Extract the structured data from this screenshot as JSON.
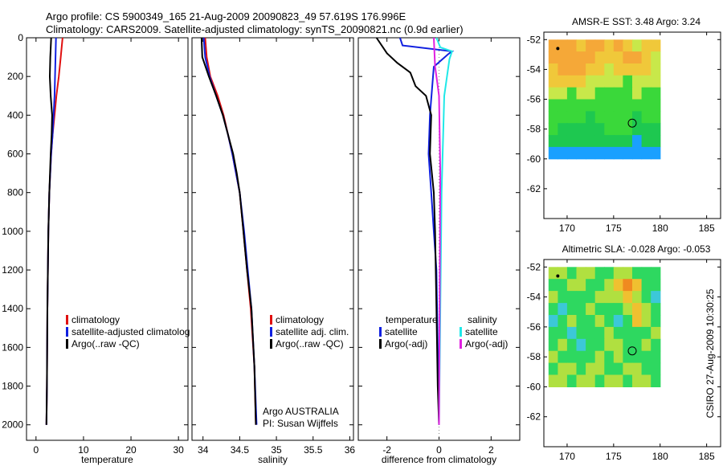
{
  "header": {
    "line1": "Argo profile: CS 5900349_165 21-Aug-2009 20090823_49 57.619S 176.996E",
    "line2": "Climatology: CARS2009. Satellite-adjusted climatology: synTS_20090821.nc (0.9d earlier)"
  },
  "credit": "CSIRO 27-Aug-2009 10:30:25",
  "colors": {
    "red": "#e01010",
    "blue": "#1020e0",
    "black": "#000000",
    "cyan": "#20e8e8",
    "magenta": "#e020e0"
  },
  "chart_data": [
    {
      "type": "line",
      "id": "temperature",
      "xlabel": "temperature",
      "ylabel": "",
      "xlim": [
        -2,
        32
      ],
      "ylim": [
        2080,
        0
      ],
      "y_reversed": true,
      "xticks": [
        0,
        10,
        20,
        30
      ],
      "xticklabels": [
        "0",
        "10",
        "20",
        "30"
      ],
      "yticks": [
        0,
        200,
        400,
        600,
        800,
        1000,
        1200,
        1400,
        1600,
        1800,
        2000
      ],
      "yticklabels": [
        "0",
        "200",
        "400",
        "600",
        "800",
        "1000",
        "1200",
        "1400",
        "1600",
        "1800",
        "2000"
      ],
      "legend": [
        "climatology",
        "satellite-adjusted climatolog",
        "Argo(..raw -QC)"
      ],
      "series": [
        {
          "name": "climatology",
          "color": "red",
          "x": [
            5.6,
            5.2,
            4.8,
            4.3,
            3.9,
            3.5,
            3.2,
            2.8,
            2.6,
            2.4,
            2.3,
            2.2
          ],
          "y": [
            0,
            100,
            200,
            300,
            400,
            500,
            600,
            800,
            1000,
            1400,
            1800,
            2000
          ]
        },
        {
          "name": "satellite-adjusted climatolog",
          "color": "blue",
          "x": [
            4.2,
            4.1,
            4.0,
            3.9,
            3.7,
            3.5,
            3.2,
            2.8,
            2.6,
            2.4,
            2.3,
            2.2
          ],
          "y": [
            0,
            100,
            200,
            300,
            400,
            500,
            600,
            800,
            1000,
            1400,
            1800,
            2000
          ]
        },
        {
          "name": "Argo(..raw -QC)",
          "color": "black",
          "x": [
            3.2,
            3.0,
            2.9,
            3.1,
            3.4,
            3.3,
            3.1,
            2.8,
            2.6,
            2.4,
            2.3,
            2.2
          ],
          "y": [
            0,
            100,
            200,
            300,
            400,
            500,
            600,
            800,
            1000,
            1400,
            1800,
            2000
          ]
        }
      ]
    },
    {
      "type": "line",
      "id": "salinity",
      "xlabel": "salinity",
      "ylabel": "",
      "xlim": [
        33.85,
        36.05
      ],
      "ylim": [
        2080,
        0
      ],
      "y_reversed": true,
      "xticks": [
        34,
        34.5,
        35,
        35.5,
        36
      ],
      "xticklabels": [
        "34",
        "34.5",
        "35",
        "35.5",
        "36"
      ],
      "legend": [
        "climatology",
        "satellite adj. clim.",
        "Argo(..raw -QC)"
      ],
      "annotations": [
        "Argo AUSTRALIA",
        "PI: Susan Wijffels"
      ],
      "series": [
        {
          "name": "climatology",
          "color": "red",
          "x": [
            34.03,
            34.05,
            34.1,
            34.2,
            34.28,
            34.34,
            34.4,
            34.45,
            34.5,
            34.55,
            34.6,
            34.65,
            34.7,
            34.72
          ],
          "y": [
            0,
            100,
            200,
            300,
            400,
            500,
            600,
            700,
            800,
            1000,
            1200,
            1400,
            1700,
            2000
          ]
        },
        {
          "name": "satellite adj. clim.",
          "color": "blue",
          "x": [
            34.01,
            34.03,
            34.09,
            34.18,
            34.27,
            34.34,
            34.4,
            34.45,
            34.5,
            34.56,
            34.61,
            34.66,
            34.7,
            34.73
          ],
          "y": [
            0,
            100,
            200,
            300,
            400,
            500,
            600,
            700,
            800,
            1000,
            1200,
            1400,
            1700,
            2000
          ]
        },
        {
          "name": "Argo(..raw -QC)",
          "color": "black",
          "x": [
            33.98,
            33.99,
            34.08,
            34.18,
            34.27,
            34.34,
            34.41,
            34.46,
            34.5,
            34.55,
            34.6,
            34.66,
            34.7,
            34.72
          ],
          "y": [
            0,
            100,
            200,
            300,
            400,
            500,
            600,
            700,
            800,
            1000,
            1200,
            1400,
            1700,
            2000
          ]
        }
      ]
    },
    {
      "type": "line",
      "id": "difference",
      "xlabel": "difference from climatology",
      "ylabel": "",
      "xlim": [
        -3.1,
        3.1
      ],
      "ylim": [
        2080,
        0
      ],
      "y_reversed": true,
      "xticks": [
        -2,
        0,
        2
      ],
      "xticklabels": [
        "-2",
        "0",
        "2"
      ],
      "legend_left_title": "temperature",
      "legend_left": [
        "satellite",
        "Argo(-adj)"
      ],
      "legend_right_title": "salinity",
      "legend_right": [
        "satellite",
        "Argo(-adj)"
      ],
      "series": [
        {
          "name": "temperature satellite",
          "color": "blue",
          "x": [
            -1.5,
            -1.4,
            0.5,
            0.35,
            -0.2,
            -0.35,
            -0.4,
            -0.3,
            -0.2,
            -0.1,
            -0.05,
            0.0
          ],
          "y": [
            0,
            40,
            70,
            85,
            150,
            400,
            600,
            800,
            1000,
            1200,
            1600,
            2000
          ]
        },
        {
          "name": "temperature Argo(-adj)",
          "color": "black",
          "x": [
            -2.4,
            -2.0,
            -1.6,
            -1.1,
            -0.9,
            -0.5,
            -0.3,
            -0.35,
            -0.2,
            -0.15,
            -0.1,
            -0.05,
            0.0
          ],
          "y": [
            0,
            80,
            130,
            180,
            250,
            300,
            400,
            600,
            800,
            1000,
            1400,
            1800,
            2000
          ]
        },
        {
          "name": "salinity satellite",
          "color": "cyan",
          "x": [
            -0.1,
            0.05,
            0.5,
            0.4,
            0.2,
            0.1,
            0.05,
            0.0
          ],
          "y": [
            0,
            50,
            70,
            110,
            300,
            800,
            1400,
            2000
          ]
        },
        {
          "name": "salinity Argo(-adj)",
          "color": "magenta",
          "x": [
            -0.2,
            -0.15,
            -0.1,
            0.0,
            0.05,
            0.0
          ],
          "y": [
            0,
            150,
            200,
            300,
            700,
            2000
          ]
        }
      ]
    },
    {
      "type": "heatmap",
      "id": "sst_map",
      "title": "AMSR-E SST: 3.48 Argo: 3.24",
      "xlim": [
        167.5,
        186.5
      ],
      "ylim": [
        -64,
        -51.5
      ],
      "xticks": [
        170,
        175,
        180,
        185
      ],
      "xticklabels": [
        "170",
        "175",
        "180",
        "185"
      ],
      "yticks": [
        -52,
        -54,
        -56,
        -58,
        -60,
        -62
      ],
      "yticklabels": [
        "-52",
        "-54",
        "-56",
        "-58",
        "-60",
        "-62"
      ],
      "data_extent": {
        "lon": [
          168,
          180
        ],
        "lat": [
          -60,
          -52
        ]
      },
      "marker_dot": {
        "lon": 169,
        "lat": -52.6
      },
      "marker_circle": {
        "lon": 177,
        "lat": -57.6
      },
      "grid": [
        [
          6,
          6,
          6,
          5,
          6,
          6,
          5,
          6,
          5,
          4,
          5,
          5
        ],
        [
          6,
          6,
          6,
          6,
          6,
          5,
          5,
          5,
          6,
          6,
          5,
          4
        ],
        [
          5,
          6,
          6,
          6,
          5,
          5,
          4,
          5,
          5,
          5,
          5,
          4
        ],
        [
          5,
          5,
          5,
          5,
          4,
          4,
          4,
          4,
          3,
          4,
          4,
          4
        ],
        [
          4,
          4,
          3,
          4,
          4,
          3,
          3,
          3,
          3,
          4,
          3,
          3
        ],
        [
          3,
          3,
          3,
          3,
          3,
          3,
          3,
          3,
          3,
          3,
          3,
          3
        ],
        [
          3,
          3,
          3,
          3,
          2,
          3,
          3,
          3,
          3,
          2,
          3,
          3
        ],
        [
          3,
          2,
          2,
          2,
          2,
          2,
          3,
          3,
          3,
          2,
          2,
          2
        ],
        [
          2,
          2,
          2,
          2,
          2,
          2,
          2,
          2,
          2,
          1,
          2,
          2
        ],
        [
          1,
          1,
          1,
          1,
          1,
          1,
          1,
          1,
          1,
          1,
          1,
          1
        ]
      ]
    },
    {
      "type": "heatmap",
      "id": "sla_map",
      "title": "Altimetric SLA: -0.028 Argo: -0.053",
      "xlim": [
        167.5,
        186.5
      ],
      "ylim": [
        -64,
        -51.5
      ],
      "xticks": [
        170,
        175,
        180,
        185
      ],
      "xticklabels": [
        "170",
        "175",
        "180",
        "185"
      ],
      "yticks": [
        -52,
        -54,
        -56,
        -58,
        -60,
        -62
      ],
      "yticklabels": [
        "-52",
        "-54",
        "-56",
        "-58",
        "-60",
        "-62"
      ],
      "data_extent": {
        "lon": [
          168,
          180
        ],
        "lat": [
          -60,
          -52
        ]
      },
      "marker_dot": {
        "lon": 169,
        "lat": -52.6
      },
      "marker_circle": {
        "lon": 177,
        "lat": -57.6
      },
      "grid": [
        [
          4,
          4,
          3,
          4,
          4,
          3,
          3,
          4,
          4,
          3,
          3,
          3
        ],
        [
          3,
          3,
          4,
          4,
          3,
          3,
          4,
          5,
          6,
          5,
          3,
          3
        ],
        [
          4,
          3,
          3,
          3,
          3,
          4,
          4,
          4,
          5,
          4,
          3,
          2
        ],
        [
          3,
          2,
          3,
          3,
          4,
          3,
          3,
          3,
          4,
          5,
          4,
          3
        ],
        [
          2,
          3,
          4,
          3,
          3,
          4,
          3,
          2,
          3,
          5,
          4,
          3
        ],
        [
          3,
          3,
          2,
          3,
          3,
          3,
          4,
          3,
          3,
          3,
          3,
          4
        ],
        [
          3,
          4,
          3,
          2,
          3,
          3,
          4,
          4,
          3,
          3,
          4,
          3
        ],
        [
          4,
          3,
          3,
          3,
          3,
          4,
          3,
          4,
          3,
          3,
          3,
          3
        ],
        [
          3,
          4,
          4,
          3,
          4,
          4,
          3,
          3,
          4,
          4,
          3,
          3
        ],
        [
          4,
          4,
          3,
          4,
          4,
          3,
          4,
          4,
          3,
          4,
          4,
          3
        ]
      ]
    }
  ]
}
